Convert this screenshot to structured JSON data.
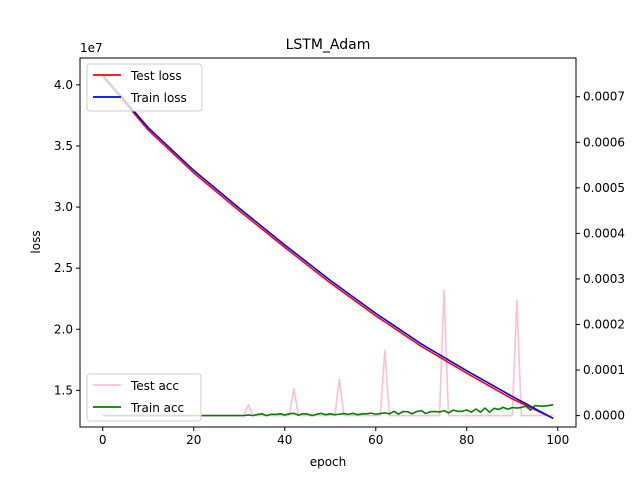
{
  "chart_data": {
    "type": "line",
    "title": "LSTM_Adam",
    "xlabel": "epoch",
    "ylabel": "loss",
    "y_offset_label": "1e7",
    "xlim": [
      -5,
      104
    ],
    "ylim_left": [
      12.0,
      42.2
    ],
    "ylim_right": [
      -2.5e-05,
      0.000785
    ],
    "x_ticks": [
      0,
      20,
      40,
      60,
      80,
      100
    ],
    "x_tick_labels": [
      "0",
      "20",
      "40",
      "60",
      "80",
      "100"
    ],
    "y_left_ticks": [
      15,
      20,
      25,
      30,
      35,
      40
    ],
    "y_left_tick_labels": [
      "1.5",
      "2.0",
      "2.5",
      "3.0",
      "3.5",
      "4.0"
    ],
    "y_right_ticks": [
      0,
      0.0001,
      0.0002,
      0.0003,
      0.0004,
      0.0005,
      0.0006,
      0.0007
    ],
    "y_right_tick_labels": [
      "0.0000",
      "0.0001",
      "0.0002",
      "0.0003",
      "0.0004",
      "0.0005",
      "0.0006",
      "0.0007"
    ],
    "legend_loss_position": "upper left",
    "legend_acc_position": "lower left",
    "grid": false,
    "series": [
      {
        "name": "Test loss",
        "axis": "left",
        "color": "#ff0000",
        "x": [
          0,
          10,
          20,
          30,
          40,
          50,
          60,
          70,
          80,
          90,
          99
        ],
        "y": [
          40.7,
          36.3,
          32.8,
          29.7,
          26.7,
          23.8,
          21.1,
          18.6,
          16.4,
          14.3,
          12.7
        ]
      },
      {
        "name": "Train loss",
        "axis": "left",
        "color": "#0000ff",
        "x": [
          0,
          10,
          20,
          30,
          40,
          50,
          60,
          70,
          80,
          90,
          99
        ],
        "y": [
          40.8,
          36.5,
          33.0,
          29.9,
          26.9,
          24.0,
          21.3,
          18.8,
          16.6,
          14.5,
          12.7
        ]
      },
      {
        "name": "Test acc",
        "axis": "right",
        "color": "#ffc0cb",
        "x": [
          0,
          31,
          32,
          33,
          41,
          42,
          43,
          51,
          52,
          53,
          61,
          62,
          63,
          74,
          75,
          76,
          90,
          91,
          92,
          99
        ],
        "y": [
          0,
          0,
          2.4e-05,
          0,
          0,
          5.95e-05,
          0,
          0,
          7.95e-05,
          0,
          0,
          0.000143,
          0,
          0,
          0.000276,
          0,
          0,
          0.000252,
          0,
          0
        ]
      },
      {
        "name": "Train acc",
        "axis": "right",
        "color": "#008000",
        "x": [
          0,
          31,
          32,
          33,
          34,
          35,
          36,
          37,
          38,
          39,
          40,
          41,
          42,
          43,
          44,
          45,
          46,
          47,
          48,
          49,
          50,
          51,
          52,
          53,
          54,
          55,
          56,
          57,
          58,
          59,
          60,
          61,
          62,
          63,
          64,
          65,
          66,
          67,
          68,
          69,
          70,
          71,
          72,
          73,
          74,
          75,
          76,
          77,
          78,
          79,
          80,
          81,
          82,
          83,
          84,
          85,
          86,
          87,
          88,
          89,
          90,
          91,
          92,
          93,
          94,
          95,
          96,
          97,
          98,
          99
        ],
        "y": [
          0,
          0,
          1.5e-06,
          0,
          2.5e-06,
          4e-06,
          0,
          3e-06,
          2.5e-06,
          4e-06,
          1.5e-06,
          4e-06,
          5e-06,
          1e-06,
          4e-06,
          3.5e-06,
          0,
          3e-06,
          5e-06,
          2e-06,
          4e-06,
          2e-06,
          3e-06,
          4.5e-06,
          3e-06,
          5e-06,
          2e-06,
          4e-06,
          4e-06,
          5.5e-06,
          3e-06,
          4.5e-06,
          6e-06,
          4e-06,
          9.5e-06,
          3.5e-06,
          9e-06,
          8.5e-06,
          4e-06,
          9e-06,
          1.1e-05,
          4.5e-06,
          8.5e-06,
          9e-06,
          8e-06,
          1.1e-05,
          6e-06,
          1.2e-05,
          9.5e-06,
          9.5e-06,
          1.25e-05,
          7.5e-06,
          1.45e-05,
          7.5e-06,
          1.65e-05,
          7.5e-06,
          1.6e-05,
          1.35e-05,
          1.8e-05,
          1.4e-05,
          1.75e-05,
          1.65e-05,
          1.8e-05,
          2.05e-05,
          1.2e-05,
          2.2e-05,
          2.1e-05,
          2.1e-05,
          2.2e-05,
          2.4e-05
        ]
      }
    ]
  }
}
